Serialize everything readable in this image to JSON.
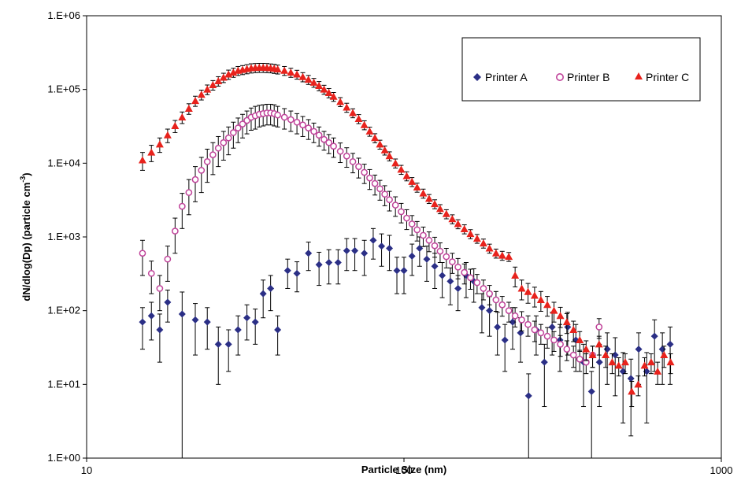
{
  "chart_data": {
    "type": "scatter",
    "title": "",
    "xlabel": "Particle Size (nm)",
    "ylabel_main": "dN/dlog(Dp) (particle cm",
    "ylabel_sup": "-3",
    "ylabel_close": ")",
    "x_scale": "log",
    "y_scale": "log",
    "xlim": [
      10,
      1000
    ],
    "ylim": [
      1,
      1000000
    ],
    "x_ticks": [
      10,
      100,
      1000
    ],
    "x_tick_labels": [
      "10",
      "100",
      "1000"
    ],
    "y_ticks": [
      1,
      10,
      100,
      1000,
      10000,
      100000,
      1000000
    ],
    "y_tick_labels": [
      "1.E+00",
      "1.E+01",
      "1.E+02",
      "1.E+03",
      "1.E+04",
      "1.E+05",
      "1.E+06"
    ],
    "grid": false,
    "legend_position": "top-right",
    "error_bars": true,
    "series": [
      {
        "name": "Printer A",
        "marker": "diamond",
        "color": "#2b2f86",
        "x": [
          15,
          16,
          17,
          18,
          20,
          22,
          24,
          26,
          28,
          30,
          32,
          34,
          36,
          38,
          40,
          43,
          46,
          50,
          54,
          58,
          62,
          66,
          70,
          75,
          80,
          85,
          90,
          95,
          100,
          106,
          112,
          118,
          125,
          132,
          140,
          148,
          157,
          166,
          176,
          186,
          197,
          208,
          220,
          233,
          247,
          261,
          277,
          293,
          310,
          328,
          348,
          368,
          390,
          413,
          437,
          463,
          490,
          519,
          549,
          582,
          616,
          652,
          690
        ],
        "y": [
          70,
          85,
          55,
          130,
          90,
          75,
          70,
          35,
          35,
          55,
          80,
          70,
          170,
          200,
          55,
          350,
          320,
          600,
          420,
          450,
          450,
          650,
          650,
          600,
          900,
          750,
          700,
          350,
          350,
          550,
          700,
          500,
          400,
          300,
          250,
          200,
          300,
          250,
          110,
          100,
          60,
          40,
          70,
          50,
          7,
          55,
          20,
          60,
          40,
          60,
          40,
          20,
          8,
          20,
          30,
          25,
          15,
          12,
          30,
          15,
          45,
          30,
          35
        ],
        "err": [
          40,
          45,
          35,
          60,
          89,
          50,
          40,
          25,
          20,
          30,
          40,
          35,
          90,
          100,
          30,
          150,
          140,
          250,
          200,
          220,
          220,
          300,
          300,
          300,
          400,
          350,
          350,
          180,
          180,
          250,
          300,
          250,
          200,
          150,
          130,
          100,
          150,
          120,
          60,
          55,
          35,
          25,
          40,
          30,
          6.9,
          30,
          15,
          35,
          25,
          35,
          25,
          15,
          7,
          15,
          20,
          18,
          12,
          10,
          20,
          12,
          30,
          20,
          25
        ]
      },
      {
        "name": "Printer B",
        "marker": "open-circle",
        "color": "#c0439a",
        "x": [
          15,
          16,
          17,
          18,
          19,
          20,
          21,
          22,
          23,
          24,
          25,
          26,
          27,
          28,
          29,
          30,
          31,
          32,
          33,
          34,
          35,
          36,
          37,
          38,
          39,
          40,
          42,
          44,
          46,
          48,
          50,
          52,
          54,
          56,
          58,
          60,
          63,
          66,
          69,
          72,
          75,
          78,
          81,
          84,
          87,
          90,
          94,
          98,
          102,
          106,
          110,
          115,
          120,
          125,
          130,
          136,
          142,
          148,
          155,
          162,
          170,
          178,
          186,
          195,
          204,
          214,
          224,
          235,
          246,
          258,
          270,
          283,
          297,
          311,
          326,
          342,
          358,
          375,
          393,
          412
        ],
        "y": [
          600,
          320,
          200,
          500,
          1200,
          2600,
          4000,
          6000,
          8000,
          10500,
          13000,
          16000,
          19000,
          22000,
          26000,
          30000,
          34000,
          38000,
          42000,
          44000,
          46000,
          47000,
          48000,
          48000,
          47000,
          45000,
          42000,
          39000,
          36000,
          33000,
          30000,
          27000,
          24000,
          21000,
          19000,
          17000,
          14500,
          12500,
          10500,
          9000,
          7500,
          6300,
          5300,
          4500,
          3800,
          3200,
          2700,
          2200,
          1800,
          1500,
          1250,
          1050,
          900,
          760,
          640,
          540,
          460,
          390,
          330,
          280,
          240,
          200,
          170,
          140,
          120,
          100,
          85,
          75,
          65,
          55,
          50,
          45,
          40,
          35,
          30,
          25,
          22,
          20,
          25,
          60
        ],
        "err": [
          300,
          150,
          100,
          250,
          600,
          1300,
          2000,
          3000,
          4000,
          5000,
          6000,
          7000,
          8000,
          9000,
          10000,
          11000,
          12000,
          13000,
          14000,
          15000,
          15000,
          15000,
          15000,
          15000,
          15000,
          14000,
          13000,
          12000,
          11000,
          10000,
          9000,
          8000,
          7000,
          6000,
          5500,
          5000,
          4300,
          3700,
          3100,
          2700,
          2200,
          1900,
          1600,
          1350,
          1150,
          950,
          800,
          650,
          540,
          450,
          370,
          310,
          270,
          230,
          190,
          160,
          140,
          120,
          100,
          85,
          70,
          60,
          50,
          42,
          36,
          30,
          25,
          22,
          20,
          17,
          15,
          14,
          12,
          11,
          9,
          8,
          7,
          6,
          8,
          18
        ]
      },
      {
        "name": "Printer C",
        "marker": "triangle",
        "color": "#e8221c",
        "x": [
          15,
          16,
          17,
          18,
          19,
          20,
          21,
          22,
          23,
          24,
          25,
          26,
          27,
          28,
          29,
          30,
          31,
          32,
          33,
          34,
          35,
          36,
          37,
          38,
          39,
          40,
          42,
          44,
          46,
          48,
          50,
          52,
          54,
          56,
          58,
          60,
          63,
          66,
          69,
          72,
          75,
          78,
          81,
          84,
          87,
          90,
          94,
          98,
          102,
          106,
          110,
          115,
          120,
          125,
          130,
          136,
          142,
          148,
          155,
          162,
          170,
          178,
          186,
          195,
          204,
          214,
          224,
          235,
          246,
          258,
          270,
          283,
          297,
          311,
          326,
          342,
          358,
          375,
          393,
          412,
          432,
          453,
          475,
          498,
          522,
          547,
          573,
          601,
          630,
          660,
          692
        ],
        "y": [
          11000,
          14000,
          18000,
          24000,
          32000,
          42000,
          55000,
          70000,
          85000,
          100000,
          115000,
          130000,
          145000,
          160000,
          170000,
          180000,
          185000,
          190000,
          195000,
          197000,
          198000,
          198000,
          197000,
          195000,
          192000,
          188000,
          180000,
          170000,
          160000,
          148000,
          136000,
          124000,
          112000,
          100000,
          90000,
          80000,
          68000,
          57000,
          48000,
          40000,
          33000,
          27000,
          22000,
          18000,
          15000,
          12500,
          10000,
          8200,
          6700,
          5600,
          4700,
          3900,
          3300,
          2800,
          2400,
          2050,
          1750,
          1500,
          1280,
          1100,
          950,
          820,
          700,
          600,
          560,
          540,
          300,
          200,
          180,
          160,
          140,
          120,
          100,
          85,
          70,
          55,
          40,
          30,
          25,
          35,
          25,
          20,
          18,
          20,
          8,
          10,
          18,
          20,
          15,
          25,
          20
        ],
        "err": [
          3000,
          3500,
          4000,
          5000,
          6000,
          7500,
          9000,
          11000,
          13000,
          15000,
          17000,
          19000,
          21000,
          23000,
          24000,
          25000,
          26000,
          27000,
          28000,
          28000,
          28000,
          28000,
          28000,
          27000,
          27000,
          26000,
          25000,
          24000,
          22000,
          21000,
          19000,
          17000,
          16000,
          14000,
          13000,
          11000,
          9500,
          8000,
          6700,
          5600,
          4600,
          3800,
          3100,
          2500,
          2100,
          1750,
          1400,
          1150,
          940,
          780,
          660,
          550,
          460,
          390,
          340,
          290,
          245,
          210,
          180,
          155,
          130,
          115,
          98,
          84,
          78,
          75,
          90,
          60,
          54,
          48,
          42,
          36,
          30,
          26,
          21,
          17,
          12,
          9,
          8,
          10,
          8,
          6,
          5,
          6,
          3,
          3,
          5,
          6,
          5,
          8,
          6
        ]
      }
    ]
  }
}
